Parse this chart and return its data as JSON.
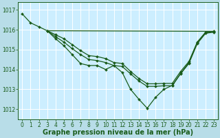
{
  "bg_color": "#b8dde8",
  "plot_bg_color": "#cceeff",
  "grid_color": "#ffffff",
  "line_color": "#1a5c1a",
  "xlabel": "Graphe pression niveau de la mer (hPa)",
  "ylabel_ticks": [
    1012,
    1013,
    1014,
    1015,
    1016,
    1017
  ],
  "xlim": [
    -0.5,
    23.5
  ],
  "ylim": [
    1011.5,
    1017.4
  ],
  "series": [
    {
      "x": [
        0,
        1,
        2,
        3,
        4,
        5,
        6,
        7,
        8,
        9,
        10,
        11,
        12,
        13,
        14,
        15,
        16,
        17,
        18,
        19,
        20,
        21,
        22,
        23
      ],
      "y": [
        1016.8,
        1016.35,
        1016.15,
        1015.95,
        1015.55,
        1015.2,
        1014.75,
        1014.3,
        1014.2,
        1014.2,
        1014.0,
        1014.2,
        1013.85,
        1013.0,
        1012.5,
        1012.05,
        1012.6,
        1013.0,
        1013.2,
        1013.8,
        1014.35,
        1015.35,
        1015.85,
        1015.9
      ],
      "has_markers": true
    },
    {
      "x": [
        3,
        4,
        5,
        6,
        7,
        8,
        9,
        10,
        11,
        12,
        13,
        14,
        15,
        16,
        17,
        18,
        19,
        20,
        21,
        22,
        23
      ],
      "y": [
        1015.95,
        1015.65,
        1015.38,
        1015.05,
        1014.75,
        1014.5,
        1014.45,
        1014.35,
        1014.2,
        1014.15,
        1013.78,
        1013.42,
        1013.15,
        1013.15,
        1013.18,
        1013.18,
        1013.78,
        1014.3,
        1015.3,
        1015.82,
        1015.88
      ],
      "has_markers": true
    },
    {
      "x": [
        3,
        23
      ],
      "y": [
        1015.95,
        1015.92
      ],
      "has_markers": false
    },
    {
      "x": [
        3,
        4,
        5,
        6,
        7,
        8,
        9,
        10,
        11,
        12,
        13,
        14,
        15,
        16,
        17,
        18,
        19,
        20,
        21,
        22,
        23
      ],
      "y": [
        1015.95,
        1015.75,
        1015.55,
        1015.25,
        1014.95,
        1014.7,
        1014.65,
        1014.55,
        1014.35,
        1014.3,
        1013.9,
        1013.55,
        1013.28,
        1013.28,
        1013.3,
        1013.3,
        1013.9,
        1014.4,
        1015.38,
        1015.88,
        1015.92
      ],
      "has_markers": true
    }
  ],
  "marker": "D",
  "marker_size": 2.0,
  "linewidth": 0.9,
  "tick_fontsize": 5.5,
  "xlabel_fontsize": 7.0,
  "xlabel_fontweight": "bold"
}
